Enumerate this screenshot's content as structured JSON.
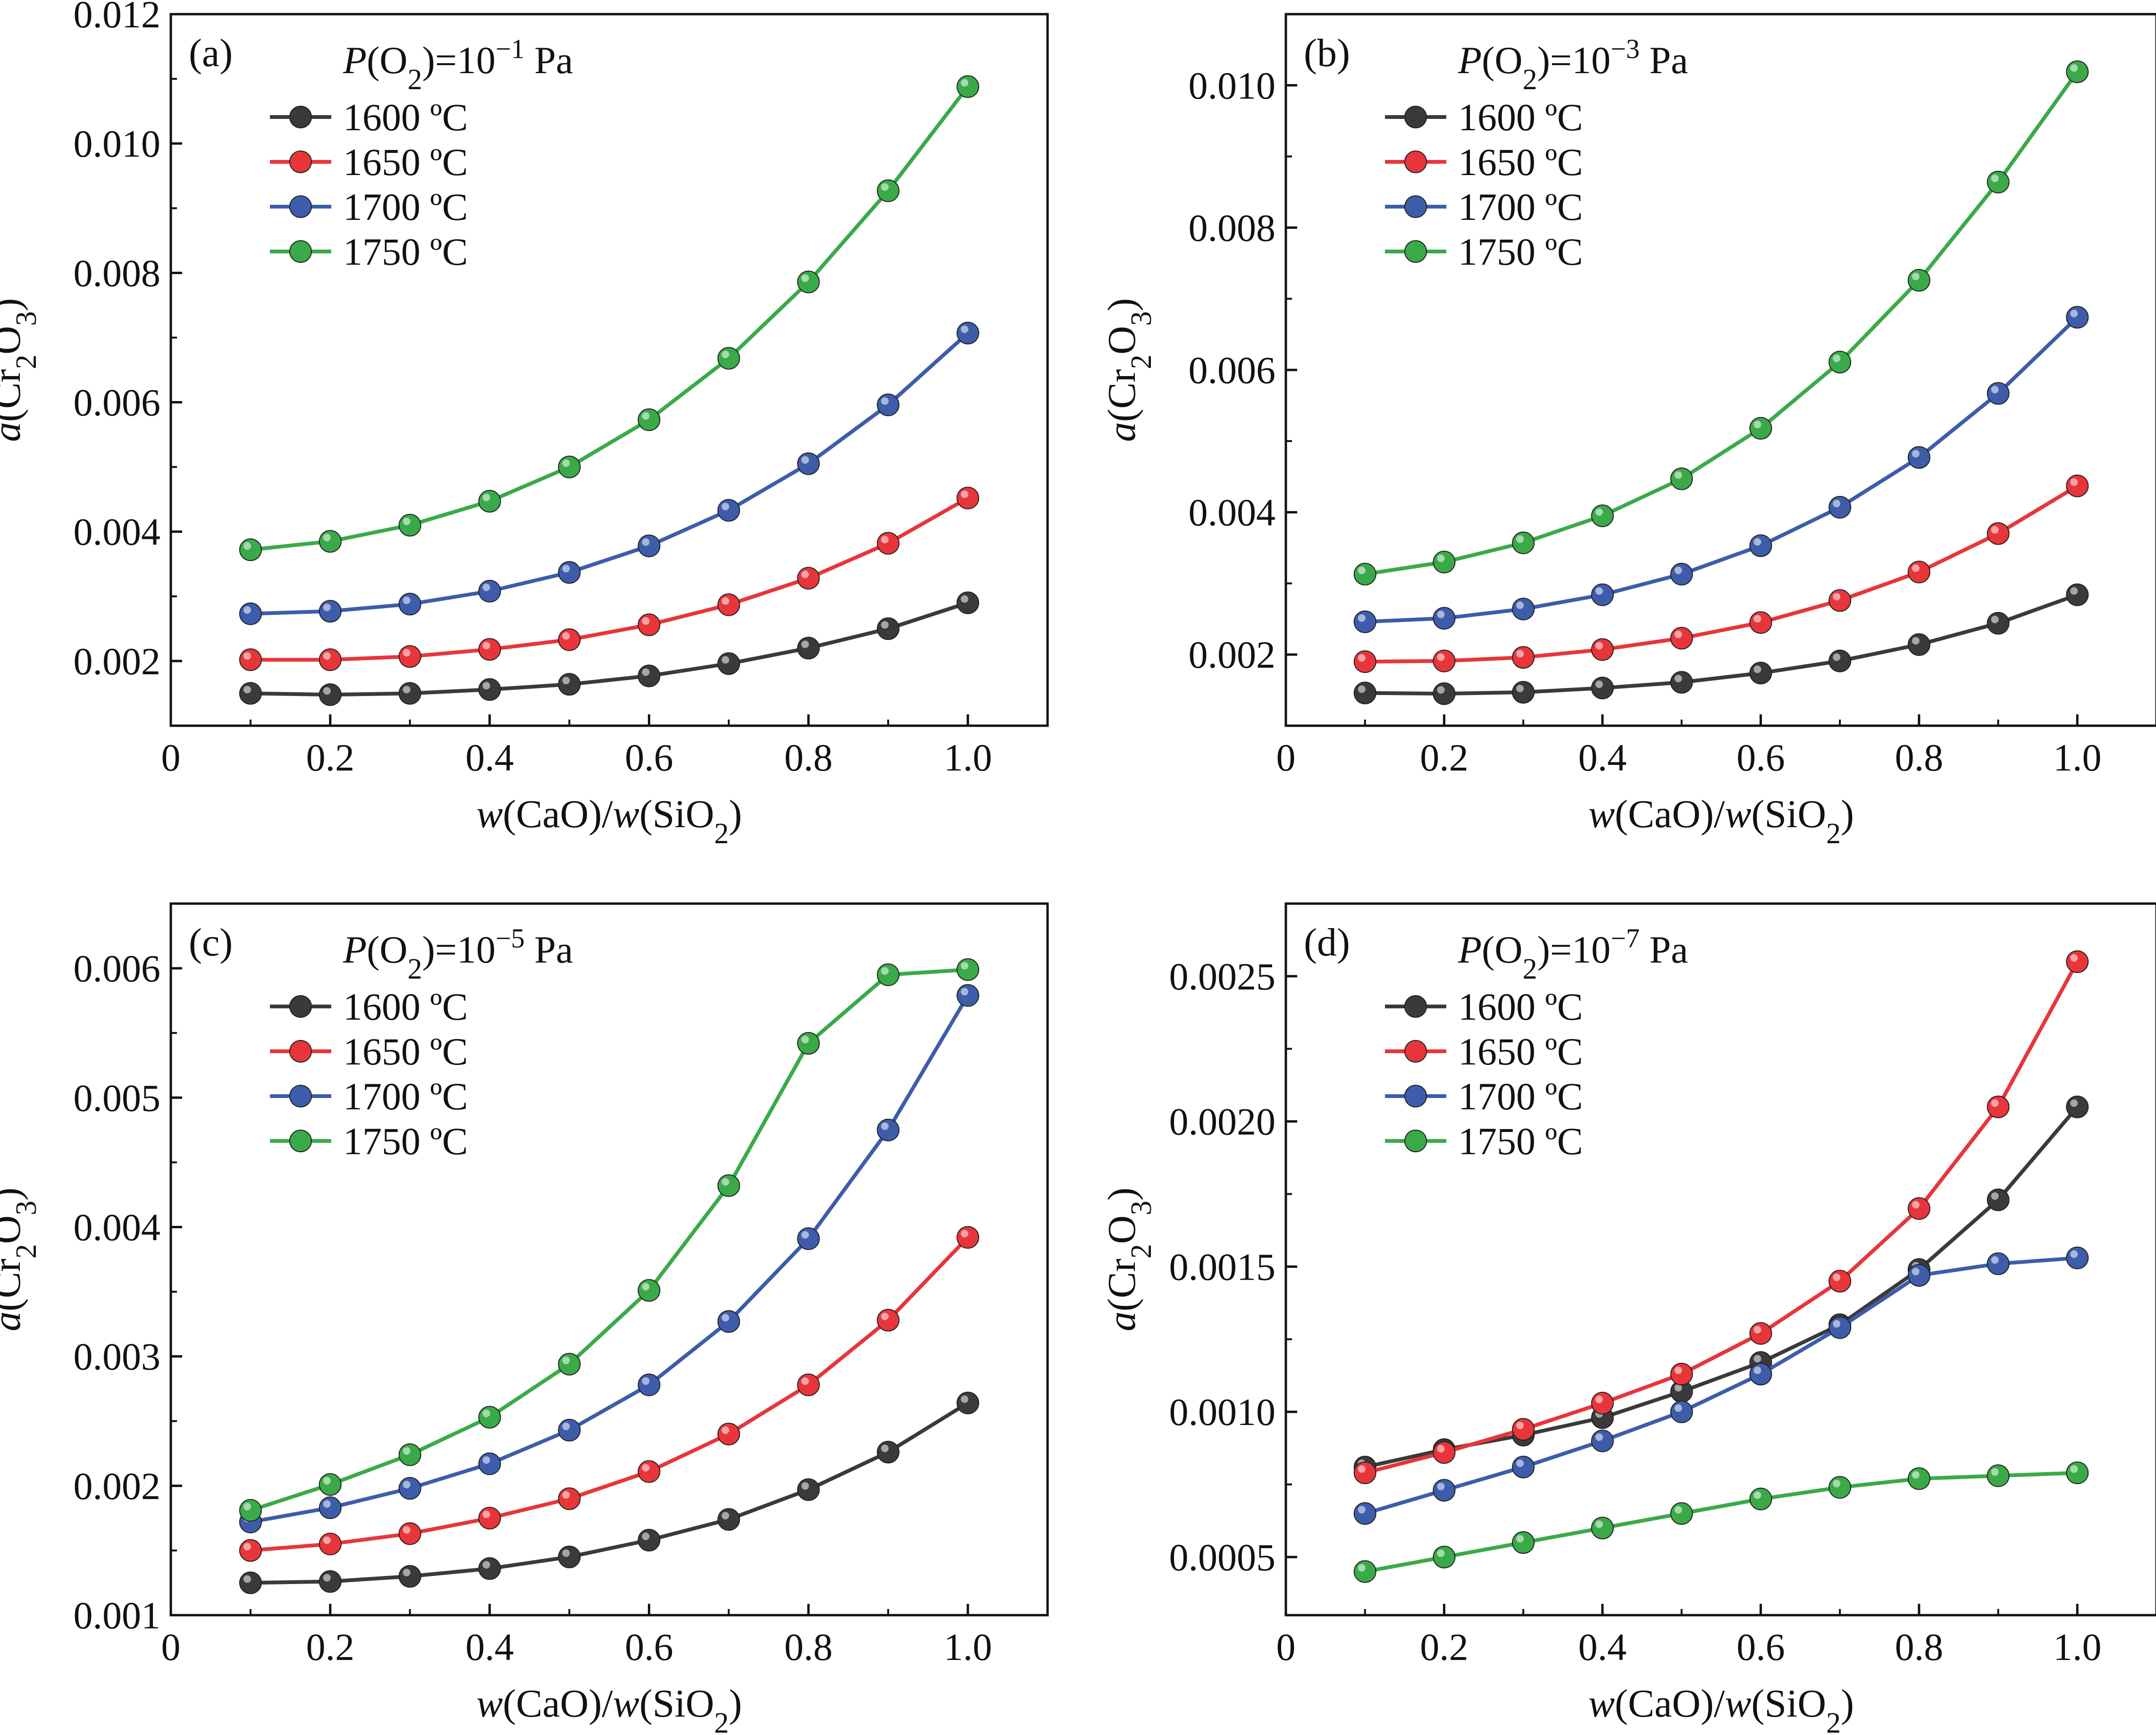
{
  "figure": {
    "x_axis_label": "w(CaO)/w(SiO2)",
    "y_axis_label": "a(Cr2O3)",
    "legend_header_prefix": "P(O2)=10",
    "legend_header_unit": "Pa"
  },
  "chart_data": [
    {
      "type": "line",
      "panel": "(a)",
      "pressure_exponent": "−1",
      "pressure_label": "P(O2)=10−1 Pa",
      "xlabel": "w(CaO)/w(SiO2)",
      "ylabel": "a(Cr2O3)",
      "xlim": [
        0,
        1.1
      ],
      "ylim": [
        0.001,
        0.012
      ],
      "xticks": [
        0,
        0.2,
        0.4,
        0.6,
        0.8,
        1.0
      ],
      "xtick_labels": [
        "0",
        "0.2",
        "0.4",
        "0.6",
        "0.8",
        "1.0"
      ],
      "yticks": [
        0.002,
        0.004,
        0.006,
        0.008,
        0.01,
        0.012
      ],
      "ytick_labels": [
        "0.002",
        "0.004",
        "0.006",
        "0.008",
        "0.010",
        "0.012"
      ],
      "x": [
        0.1,
        0.2,
        0.3,
        0.4,
        0.5,
        0.6,
        0.7,
        0.8,
        0.9,
        1.0
      ],
      "series": [
        {
          "name": "1600 ºC",
          "color": "#3a3a3a",
          "values": [
            0.0015,
            0.00148,
            0.0015,
            0.00156,
            0.00164,
            0.00177,
            0.00196,
            0.0022,
            0.0025,
            0.0029
          ]
        },
        {
          "name": "1650 ºC",
          "color": "#e8353a",
          "values": [
            0.00202,
            0.00202,
            0.00207,
            0.00218,
            0.00233,
            0.00256,
            0.00287,
            0.00328,
            0.00382,
            0.00452
          ]
        },
        {
          "name": "1700 ºC",
          "color": "#3d5dab",
          "values": [
            0.00273,
            0.00277,
            0.00288,
            0.00308,
            0.00337,
            0.00378,
            0.00433,
            0.00505,
            0.00596,
            0.00707
          ]
        },
        {
          "name": "1750 ºC",
          "color": "#3aaa48",
          "values": [
            0.00372,
            0.00385,
            0.0041,
            0.00447,
            0.005,
            0.00573,
            0.00668,
            0.00786,
            0.00927,
            0.01088
          ]
        }
      ]
    },
    {
      "type": "line",
      "panel": "(b)",
      "pressure_exponent": "−3",
      "pressure_label": "P(O2)=10−3 Pa",
      "xlabel": "w(CaO)/w(SiO2)",
      "ylabel": "a(Cr2O3)",
      "xlim": [
        0,
        1.1
      ],
      "ylim": [
        0.001,
        0.011
      ],
      "xticks": [
        0,
        0.2,
        0.4,
        0.6,
        0.8,
        1.0
      ],
      "xtick_labels": [
        "0",
        "0.2",
        "0.4",
        "0.6",
        "0.8",
        "1.0"
      ],
      "yticks": [
        0.002,
        0.004,
        0.006,
        0.008,
        0.01
      ],
      "ytick_labels": [
        "0.002",
        "0.004",
        "0.006",
        "0.008",
        "0.010"
      ],
      "x": [
        0.1,
        0.2,
        0.3,
        0.4,
        0.5,
        0.6,
        0.7,
        0.8,
        0.9,
        1.0
      ],
      "series": [
        {
          "name": "1600 ºC",
          "color": "#3a3a3a",
          "values": [
            0.00146,
            0.00145,
            0.00147,
            0.00153,
            0.00161,
            0.00174,
            0.00191,
            0.00214,
            0.00244,
            0.00284
          ]
        },
        {
          "name": "1650 ºC",
          "color": "#e8353a",
          "values": [
            0.0019,
            0.00191,
            0.00196,
            0.00207,
            0.00223,
            0.00245,
            0.00276,
            0.00316,
            0.0037,
            0.00437
          ]
        },
        {
          "name": "1700 ºC",
          "color": "#3d5dab",
          "values": [
            0.00246,
            0.00251,
            0.00264,
            0.00284,
            0.00313,
            0.00353,
            0.00407,
            0.00477,
            0.00567,
            0.00674
          ]
        },
        {
          "name": "1750 ºC",
          "color": "#3aaa48",
          "values": [
            0.00313,
            0.0033,
            0.00357,
            0.00395,
            0.00447,
            0.00518,
            0.00611,
            0.00726,
            0.00864,
            0.01019
          ]
        }
      ]
    },
    {
      "type": "line",
      "panel": "(c)",
      "pressure_exponent": "−5",
      "pressure_label": "P(O2)=10−5 Pa",
      "xlabel": "w(CaO)/w(SiO2)",
      "ylabel": "a(Cr2O3)",
      "xlim": [
        0,
        1.1
      ],
      "ylim": [
        0.001,
        0.0065
      ],
      "xticks": [
        0,
        0.2,
        0.4,
        0.6,
        0.8,
        1.0
      ],
      "xtick_labels": [
        "0",
        "0.2",
        "0.4",
        "0.6",
        "0.8",
        "1.0"
      ],
      "yticks": [
        0.001,
        0.002,
        0.003,
        0.004,
        0.005,
        0.006
      ],
      "ytick_labels": [
        "0.001",
        "0.002",
        "0.003",
        "0.004",
        "0.005",
        "0.006"
      ],
      "x": [
        0.1,
        0.2,
        0.3,
        0.4,
        0.5,
        0.6,
        0.7,
        0.8,
        0.9,
        1.0
      ],
      "series": [
        {
          "name": "1600 ºC",
          "color": "#3a3a3a",
          "values": [
            0.00125,
            0.00126,
            0.0013,
            0.00136,
            0.00145,
            0.00158,
            0.00174,
            0.00197,
            0.00226,
            0.00264
          ]
        },
        {
          "name": "1650 ºC",
          "color": "#e8353a",
          "values": [
            0.0015,
            0.00155,
            0.00163,
            0.00175,
            0.0019,
            0.00211,
            0.0024,
            0.00278,
            0.00328,
            0.00392
          ]
        },
        {
          "name": "1700 ºC",
          "color": "#3d5dab",
          "values": [
            0.00172,
            0.00183,
            0.00198,
            0.00217,
            0.00243,
            0.00278,
            0.00327,
            0.00391,
            0.00475,
            0.00579
          ]
        },
        {
          "name": "1750 ºC",
          "color": "#3aaa48",
          "values": [
            0.00181,
            0.00201,
            0.00224,
            0.00253,
            0.00294,
            0.00351,
            0.00432,
            0.00542,
            0.00595,
            0.00599
          ]
        }
      ]
    },
    {
      "type": "line",
      "panel": "(d)",
      "pressure_exponent": "−7",
      "pressure_label": "P(O2)=10−7 Pa",
      "xlabel": "w(CaO)/w(SiO2)",
      "ylabel": "a(Cr2O3)",
      "xlim": [
        0,
        1.1
      ],
      "ylim": [
        0.0003,
        0.00275
      ],
      "xticks": [
        0,
        0.2,
        0.4,
        0.6,
        0.8,
        1.0
      ],
      "xtick_labels": [
        "0",
        "0.2",
        "0.4",
        "0.6",
        "0.8",
        "1.0"
      ],
      "yticks": [
        0.0005,
        0.001,
        0.0015,
        0.002,
        0.0025
      ],
      "ytick_labels": [
        "0.0005",
        "0.0010",
        "0.0015",
        "0.0020",
        "0.0025"
      ],
      "x": [
        0.1,
        0.2,
        0.3,
        0.4,
        0.5,
        0.6,
        0.7,
        0.8,
        0.9,
        1.0
      ],
      "series": [
        {
          "name": "1600 ºC",
          "color": "#3a3a3a",
          "values": [
            0.00081,
            0.00087,
            0.00092,
            0.00098,
            0.00107,
            0.00117,
            0.0013,
            0.00149,
            0.00173,
            0.00205
          ]
        },
        {
          "name": "1650 ºC",
          "color": "#e8353a",
          "values": [
            0.00079,
            0.00086,
            0.00094,
            0.00103,
            0.00113,
            0.00127,
            0.00145,
            0.0017,
            0.00205,
            0.00255
          ]
        },
        {
          "name": "1700 ºC",
          "color": "#3d5dab",
          "values": [
            0.00065,
            0.00073,
            0.00081,
            0.0009,
            0.001,
            0.00113,
            0.00129,
            0.00147,
            0.00151,
            0.00153
          ]
        },
        {
          "name": "1750 ºC",
          "color": "#3aaa48",
          "values": [
            0.00045,
            0.0005,
            0.00055,
            0.0006,
            0.00065,
            0.0007,
            0.00074,
            0.00077,
            0.00078,
            0.00079
          ]
        }
      ]
    }
  ]
}
